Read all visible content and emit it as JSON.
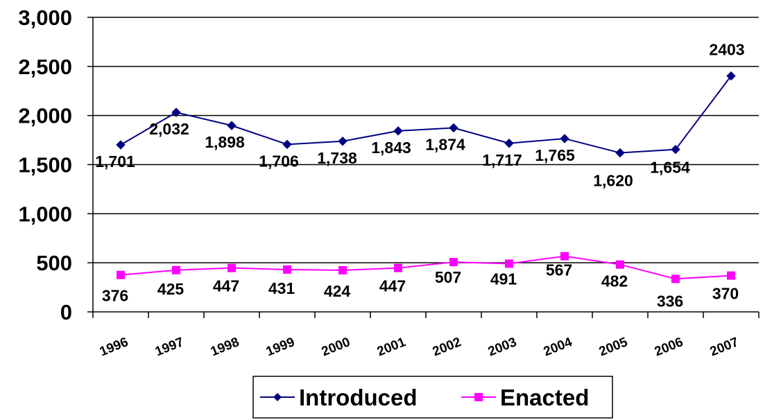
{
  "chart_data": {
    "type": "line",
    "title": "",
    "xlabel": "",
    "ylabel": "",
    "categories": [
      "1996",
      "1997",
      "1998",
      "1999",
      "2000",
      "2001",
      "2002",
      "2003",
      "2004",
      "2005",
      "2006",
      "2007"
    ],
    "ylim": [
      0,
      3000
    ],
    "yticks": [
      0,
      500,
      1000,
      1500,
      2000,
      2500,
      3000
    ],
    "ytick_labels": [
      "0",
      "500",
      "1,000",
      "1,500",
      "2,000",
      "2,500",
      "3,000"
    ],
    "grid": "horizontal",
    "legend_position": "bottom",
    "series": [
      {
        "name": "Introduced",
        "color": "#000080",
        "marker": "diamond",
        "values": [
          1701,
          2032,
          1898,
          1706,
          1738,
          1843,
          1874,
          1717,
          1765,
          1620,
          1654,
          2403
        ],
        "labels": [
          "1,701",
          "2,032",
          "1,898",
          "1,706",
          "1,738",
          "1,843",
          "1,874",
          "1,717",
          "1,765",
          "1,620",
          "1,654",
          "2403"
        ]
      },
      {
        "name": "Enacted",
        "color": "#ff00ff",
        "marker": "square",
        "values": [
          376,
          425,
          447,
          431,
          424,
          447,
          507,
          491,
          567,
          482,
          336,
          370
        ],
        "labels": [
          "376",
          "425",
          "447",
          "431",
          "424",
          "447",
          "507",
          "491",
          "567",
          "482",
          "336",
          "370"
        ]
      }
    ]
  }
}
